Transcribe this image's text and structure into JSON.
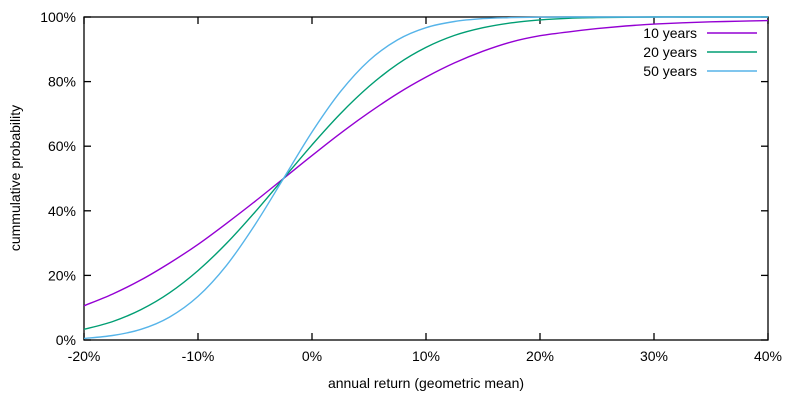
{
  "chart_data": {
    "type": "line",
    "title": "",
    "xlabel": "annual return (geometric mean)",
    "ylabel": "cummulative probability",
    "xlim": [
      -20,
      40
    ],
    "ylim": [
      0,
      100
    ],
    "x_unit": "%",
    "y_unit": "%",
    "grid": false,
    "legend_position": "top-right",
    "x_ticks": {
      "values": [
        -20,
        -10,
        0,
        10,
        20,
        30,
        40
      ],
      "labels": [
        "-20%",
        "-10%",
        "0%",
        "10%",
        "20%",
        "30%",
        "40%"
      ]
    },
    "y_ticks": {
      "values": [
        0,
        20,
        40,
        60,
        80,
        100
      ],
      "labels": [
        "0%",
        "20%",
        "40%",
        "60%",
        "80%",
        "100%"
      ]
    },
    "x": [
      -20,
      -17.5,
      -15,
      -12.5,
      -10,
      -7.5,
      -5,
      -2.5,
      0,
      2.5,
      5,
      7.5,
      10,
      12.5,
      15,
      17.5,
      20,
      22.5,
      25,
      27.5,
      30,
      32.5,
      35,
      37.5,
      40
    ],
    "series": [
      {
        "name": "10 years",
        "color": "#9400d3",
        "values": [
          10.6,
          14.2,
          18.6,
          23.8,
          29.6,
          36.1,
          42.9,
          50,
          57.1,
          64.0,
          70.4,
          76.3,
          81.4,
          85.8,
          89.4,
          92.3,
          94.2,
          95.4,
          96.4,
          97.2,
          97.8,
          98.2,
          98.5,
          98.7,
          98.9
        ]
      },
      {
        "name": "20 years",
        "color": "#009e73",
        "values": [
          3.3,
          5.7,
          9.4,
          14.6,
          21.5,
          29.9,
          39.6,
          50,
          60.4,
          70.1,
          78.5,
          85.4,
          90.6,
          94.3,
          96.7,
          98.2,
          99.1,
          99.6,
          99.8,
          99.9,
          100,
          100,
          100,
          100,
          100
        ]
      },
      {
        "name": "50 years",
        "color": "#56b4e9",
        "values": [
          0.5,
          1.4,
          3.3,
          7.1,
          13.5,
          23.1,
          35.7,
          50,
          64.4,
          76.9,
          86.5,
          92.9,
          96.7,
          98.6,
          99.5,
          99.8,
          99.95,
          100,
          100,
          100,
          100,
          100,
          100,
          100,
          100
        ]
      }
    ],
    "median_crossing": {
      "x": -2.5,
      "y": 50
    }
  }
}
